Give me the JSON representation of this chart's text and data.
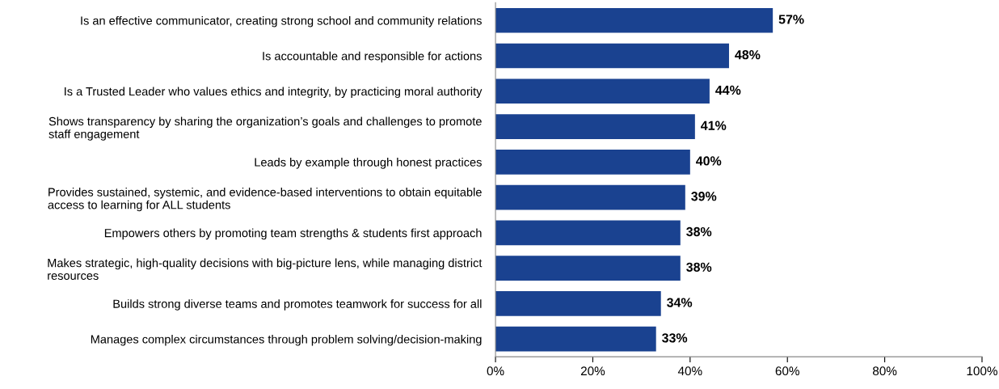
{
  "chart_data": {
    "type": "bar",
    "orientation": "horizontal",
    "categories": [
      "Is an effective communicator, creating strong school and community relations",
      "Is accountable and responsible for actions",
      "Is a Trusted Leader who values ethics and integrity, by practicing moral authority",
      "Shows transparency by sharing the organization’s goals and challenges to promote\nstaff engagement",
      "Leads by example through honest practices",
      "Provides sustained, systemic, and evidence-based interventions to obtain equitable\naccess to learning for ALL students",
      "Empowers others by promoting team strengths & students first approach",
      "Makes strategic, high-quality decisions with big-picture lens, while managing district\nresources",
      "Builds strong diverse teams and promotes teamwork for success for all",
      "Manages complex circumstances through problem solving/decision-making"
    ],
    "values": [
      57,
      48,
      44,
      41,
      40,
      39,
      38,
      38,
      34,
      33
    ],
    "value_labels": [
      "57%",
      "48%",
      "44%",
      "41%",
      "40%",
      "39%",
      "38%",
      "38%",
      "34%",
      "33%"
    ],
    "color": "#1a4290",
    "xlim": [
      0,
      100
    ],
    "xticks": [
      {
        "value": 0,
        "label": "0%"
      },
      {
        "value": 20,
        "label": "20%"
      },
      {
        "value": 40,
        "label": "40%"
      },
      {
        "value": 60,
        "label": "60%"
      },
      {
        "value": 80,
        "label": "80%"
      },
      {
        "value": 100,
        "label": "100%"
      }
    ],
    "grid": false,
    "legend": false
  }
}
